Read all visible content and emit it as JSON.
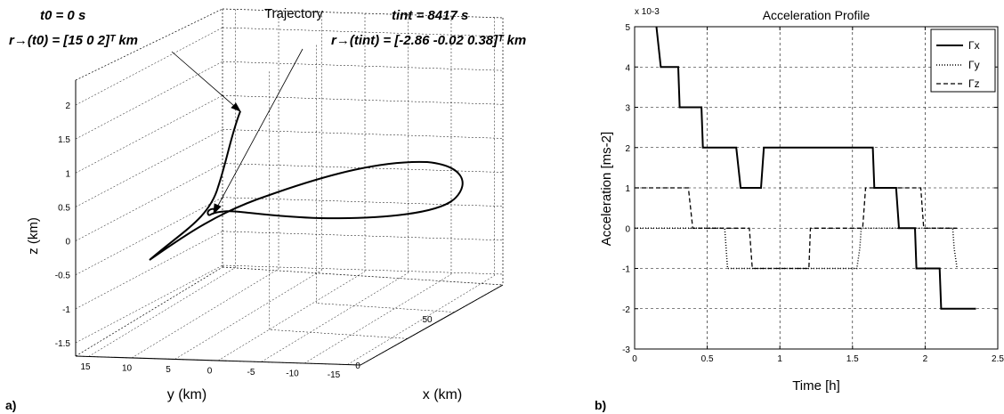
{
  "panel_labels": [
    "a)",
    "b)"
  ],
  "chart_data": [
    {
      "type": "line",
      "projection": "3d",
      "title": "Trajectory",
      "xlabel": "x (km)",
      "ylabel": "y (km)",
      "zlabel": "z (km)",
      "x_ticks": [
        "0",
        "50"
      ],
      "y_ticks": [
        "15",
        "10",
        "5",
        "0",
        "-5",
        "-10",
        "-15"
      ],
      "z_ticks": [
        "2",
        "1.5",
        "1",
        "0.5",
        "0",
        "-0.5",
        "-1",
        "-1.5"
      ],
      "grid": true,
      "annotations": {
        "start_time": "t0 = 0 s",
        "start_pos": "r→(t0) = [15 0 2]ᵀ km",
        "end_time": "tint = 8417 s",
        "end_pos": "r→(tint) = [-2.86 -0.02 0.38]ᵀ km"
      }
    },
    {
      "type": "line",
      "title": "Acceleration Profile",
      "xlabel": "Time [h]",
      "ylabel": "Acceleration [ms-2]",
      "y_exponent": "x 10-3",
      "xlim": [
        0,
        2.5
      ],
      "ylim": [
        -3,
        5
      ],
      "x_ticks": [
        "0",
        "0.5",
        "1",
        "1.5",
        "2",
        "2.5"
      ],
      "y_ticks": [
        "5",
        "4",
        "3",
        "2",
        "1",
        "0",
        "-1",
        "-2",
        "-3"
      ],
      "grid": true,
      "legend_position": "top-right",
      "series": [
        {
          "name": "Γx",
          "style": "solid",
          "x": [
            0.15,
            0.18,
            0.3,
            0.31,
            0.46,
            0.47,
            0.7,
            0.73,
            0.87,
            0.89,
            1.64,
            1.65,
            1.8,
            1.82,
            1.93,
            1.94,
            2.1,
            2.11,
            2.35
          ],
          "y": [
            5,
            4,
            4,
            3,
            3,
            2,
            2,
            1,
            1,
            2,
            2,
            1,
            1,
            0,
            0,
            -1,
            -1,
            -2,
            -2
          ]
        },
        {
          "name": "Γy",
          "style": "dotted",
          "x": [
            0,
            0.62,
            0.63,
            0.64,
            1.53,
            1.55,
            1.56,
            2.19,
            2.2,
            2.22
          ],
          "y": [
            0,
            0,
            -0.5,
            -1,
            -1,
            -0.5,
            0,
            0,
            -0.5,
            -1
          ]
        },
        {
          "name": "Γz",
          "style": "dashed",
          "x": [
            0,
            0.37,
            0.4,
            0.79,
            0.81,
            1.2,
            1.21,
            1.57,
            1.59,
            1.97,
            1.99,
            2.22
          ],
          "y": [
            1,
            1,
            0,
            0,
            -1,
            -1,
            0,
            0,
            1,
            1,
            0,
            0
          ]
        }
      ]
    }
  ]
}
